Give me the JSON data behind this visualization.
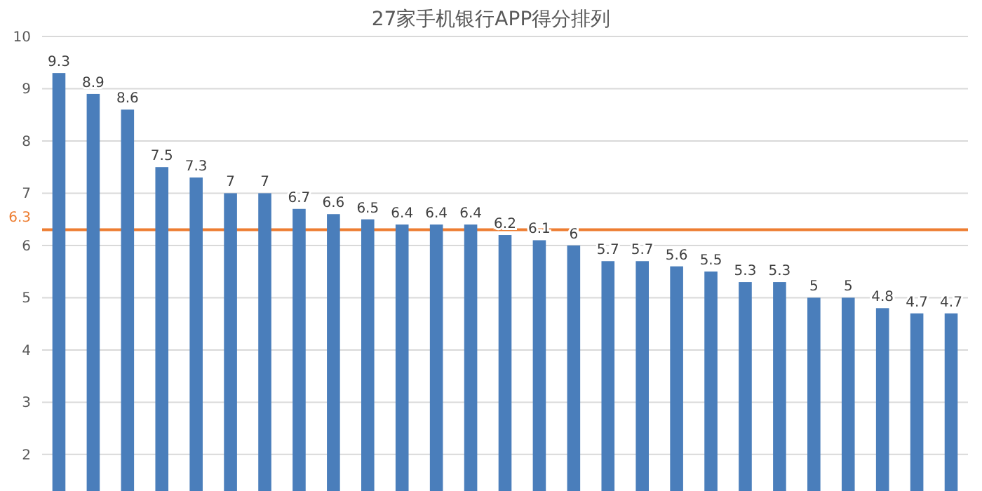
{
  "chart_data": {
    "type": "bar",
    "title": "27家手机银行APP得分排列",
    "categories": [
      null,
      null,
      null,
      null,
      null,
      null,
      null,
      null,
      null,
      null,
      null,
      null,
      null,
      null,
      null,
      null,
      null,
      null,
      null,
      null,
      null,
      null,
      null,
      null,
      null,
      null,
      null
    ],
    "values": [
      9.3,
      8.9,
      8.6,
      7.5,
      7.3,
      7,
      7,
      6.7,
      6.6,
      6.5,
      6.4,
      6.4,
      6.4,
      6.2,
      6.1,
      6,
      5.7,
      5.7,
      5.6,
      5.5,
      5.3,
      5.3,
      5,
      5,
      4.8,
      4.7,
      4.7
    ],
    "color": "#4a7ebb",
    "data_labels": true,
    "ylim": [
      1.3,
      10
    ],
    "yticks": [
      2,
      3,
      4,
      5,
      6,
      7,
      8,
      9,
      10
    ],
    "grid": "y",
    "ref_lines": [
      {
        "axis": "y",
        "value": 6.3,
        "label": "6.3",
        "color": "#ed7d31"
      }
    ]
  }
}
